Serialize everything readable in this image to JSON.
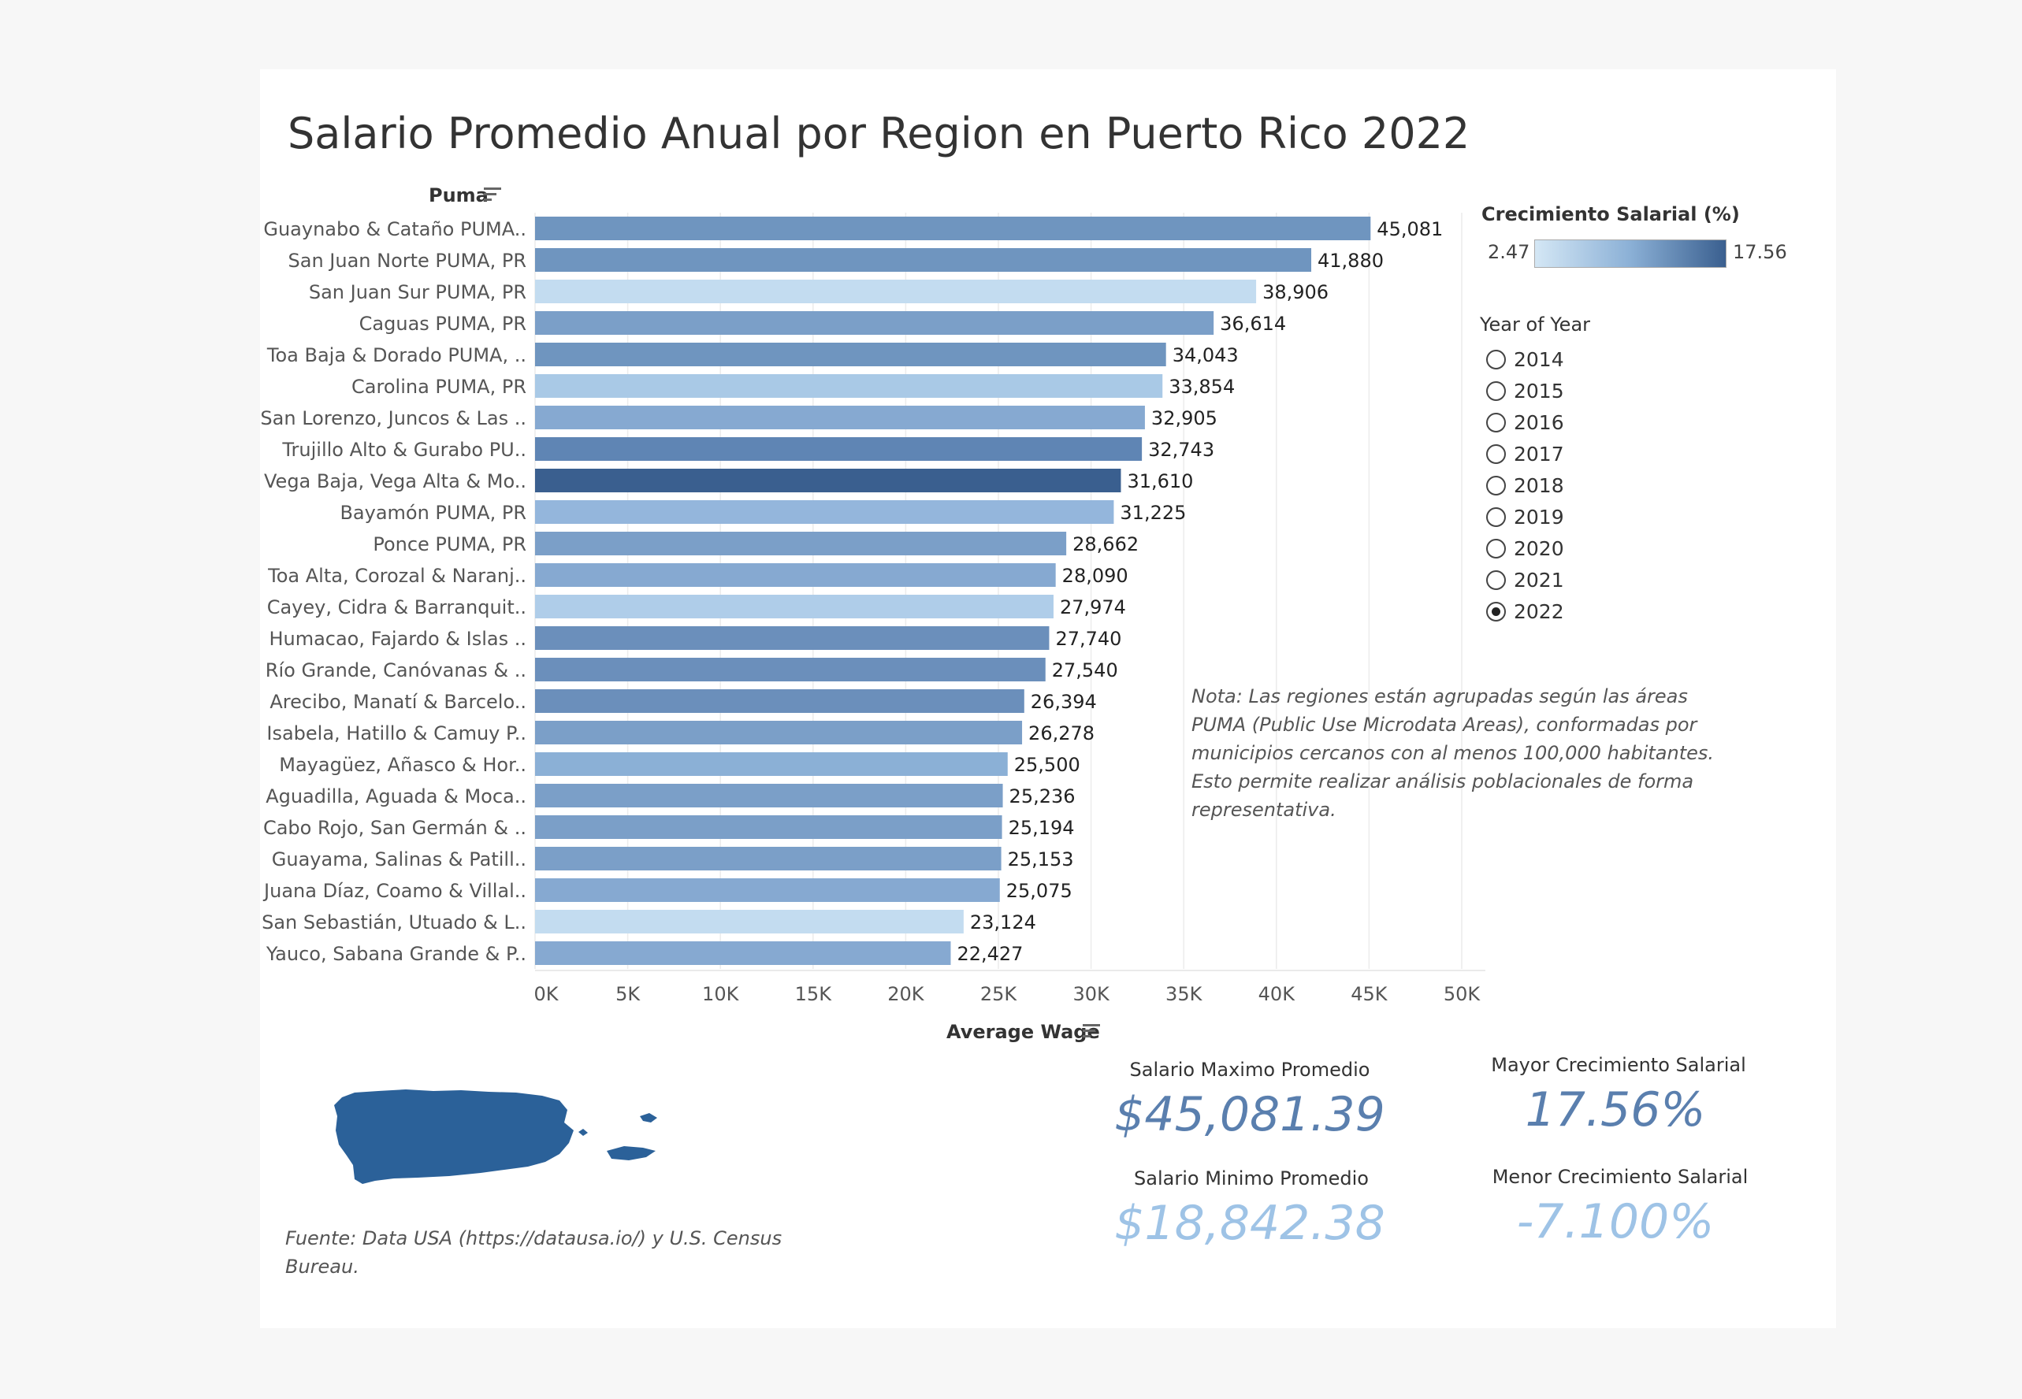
{
  "title": "Salario Promedio Anual por Region en Puerto Rico 2022",
  "puma_header": "Puma",
  "x_axis_title": "Average Wage",
  "legend": {
    "title": "Crecimiento Salarial (%)",
    "min": "2.47",
    "max": "17.56",
    "colors": [
      "#d4e7f5",
      "#8bb0d6",
      "#3a5f8f"
    ]
  },
  "year_filter": {
    "title": "Year of Year",
    "options": [
      "2014",
      "2015",
      "2016",
      "2017",
      "2018",
      "2019",
      "2020",
      "2021",
      "2022"
    ],
    "selected": "2022"
  },
  "note": "Nota: Las regiones están agrupadas según las áreas PUMA (Public Use Microdata Areas), conformadas por municipios cercanos con al menos 100,000 habitantes. Esto permite realizar análisis poblacionales de forma representativa.",
  "source": "Fuente: Data USA (https://datausa.io/) y U.S. Census Bureau.",
  "kpis": {
    "max_wage_label": "Salario Maximo Promedio",
    "max_wage_value": "$45,081.39",
    "min_wage_label": "Salario Minimo Promedio",
    "min_wage_value": "$18,842.38",
    "max_growth_label": "Mayor Crecimiento Salarial",
    "max_growth_value": "17.56%",
    "min_growth_label": "Menor Crecimiento Salarial",
    "min_growth_value": "-7.100%",
    "dark_color": "#5a7fae",
    "light_color": "#9ec3e6"
  },
  "map_color": "#2b6199",
  "chart_data": {
    "type": "bar",
    "orientation": "horizontal",
    "categories": [
      "Guaynabo & Cataño PUMA..",
      "San Juan Norte PUMA, PR",
      "San Juan Sur PUMA, PR",
      "Caguas PUMA, PR",
      "Toa Baja & Dorado PUMA, ..",
      "Carolina PUMA, PR",
      "San Lorenzo, Juncos & Las ..",
      "Trujillo Alto & Gurabo PU..",
      "Vega Baja, Vega Alta & Mo..",
      "Bayamón PUMA, PR",
      "Ponce PUMA, PR",
      "Toa Alta, Corozal & Naranj..",
      "Cayey, Cidra & Barranquit..",
      "Humacao, Fajardo & Islas ..",
      "Río Grande, Canóvanas & ..",
      "Arecibo, Manatí & Barcelo..",
      "Isabela, Hatillo & Camuy P..",
      "Mayagüez, Añasco & Hor..",
      "Aguadilla, Aguada & Moca..",
      "Cabo Rojo, San Germán & ..",
      "Guayama, Salinas & Patill..",
      "Juana Díaz, Coamo & Villal..",
      "San Sebastián, Utuado & L..",
      "Yauco, Sabana Grande & P.."
    ],
    "values": [
      45081,
      41880,
      38906,
      36614,
      34043,
      33854,
      32905,
      32743,
      31610,
      31225,
      28662,
      28090,
      27974,
      27740,
      27540,
      26394,
      26278,
      25500,
      25236,
      25194,
      25153,
      25075,
      23124,
      22427
    ],
    "value_labels": [
      "45,081",
      "41,880",
      "38,906",
      "36,614",
      "34,043",
      "33,854",
      "32,905",
      "32,743",
      "31,610",
      "31,225",
      "28,662",
      "28,090",
      "27,974",
      "27,740",
      "27,540",
      "26,394",
      "26,278",
      "25,500",
      "25,236",
      "25,194",
      "25,153",
      "25,075",
      "23,124",
      "22,427"
    ],
    "bar_colors": [
      "#6f95bf",
      "#6f95bf",
      "#c3dcf0",
      "#7b9fc8",
      "#6f95bf",
      "#a9c9e6",
      "#86a9d1",
      "#5f85b4",
      "#3a5f8f",
      "#94b6dc",
      "#7b9fc8",
      "#86a9d1",
      "#afcde9",
      "#6b8fbb",
      "#6b8fbb",
      "#6b8fbb",
      "#7b9fc8",
      "#8bb0d6",
      "#7b9fc8",
      "#7b9fc8",
      "#7b9fc8",
      "#86a9d1",
      "#c3dcf0",
      "#86a9d1"
    ],
    "xlabel": "Average Wage",
    "xlim": [
      0,
      50000
    ],
    "xticks": [
      0,
      5000,
      10000,
      15000,
      20000,
      25000,
      30000,
      35000,
      40000,
      45000,
      50000
    ],
    "xtick_labels": [
      "0K",
      "5K",
      "10K",
      "15K",
      "20K",
      "25K",
      "30K",
      "35K",
      "40K",
      "45K",
      "50K"
    ],
    "grid": true
  }
}
